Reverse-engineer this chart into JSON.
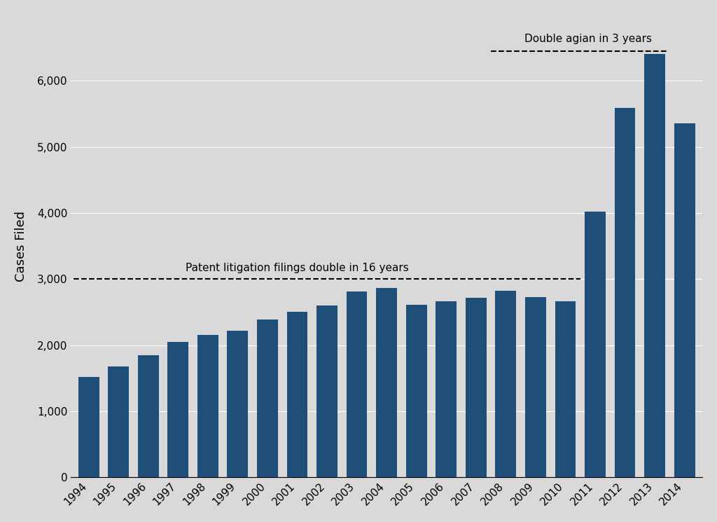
{
  "years": [
    1994,
    1995,
    1996,
    1997,
    1998,
    1999,
    2000,
    2001,
    2002,
    2003,
    2004,
    2005,
    2006,
    2007,
    2008,
    2009,
    2010,
    2011,
    2012,
    2013,
    2014
  ],
  "values": [
    1520,
    1680,
    1850,
    2050,
    2150,
    2220,
    2390,
    2500,
    2600,
    2810,
    2860,
    2610,
    2660,
    2720,
    2820,
    2730,
    2660,
    4020,
    5590,
    6400,
    5360
  ],
  "bar_color": "#1f4e79",
  "background_color": "#d9d9d9",
  "ylabel": "Cases Filed",
  "ylim": [
    0,
    7000
  ],
  "yticks": [
    0,
    1000,
    2000,
    3000,
    4000,
    5000,
    6000
  ],
  "hline_y": 3000,
  "hline_label": "Patent litigation filings double in 16 years",
  "annotation_text": "Double agian in 3 years"
}
